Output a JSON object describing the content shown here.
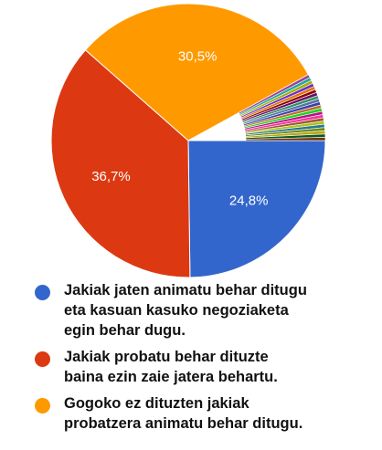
{
  "chart_data": {
    "type": "pie",
    "slices": [
      {
        "label": "Jakiak jaten animatu behar ditugu\neta kasuan kasuko negoziaketa\negin behar dugu.",
        "value": 24.8,
        "value_label": "24,8%",
        "color": "#3366cc"
      },
      {
        "label": "Jakiak probatu behar dituzte\nbaina ezin zaie jatera behartu.",
        "value": 36.7,
        "value_label": "36,7%",
        "color": "#dc3912"
      },
      {
        "label": "Gogoko ez dituzten jakiak\nprobatzera animatu behar ditugu.",
        "value": 30.5,
        "value_label": "30,5%",
        "color": "#ff9900"
      },
      {
        "label": "",
        "value": 8.0,
        "value_label": "",
        "color": "multicolor-thin-slices"
      }
    ],
    "start": "3 o'clock",
    "direction": "clockwise",
    "legend_position": "bottom"
  },
  "legend": [
    {
      "text": "Jakiak jaten animatu behar ditugu\neta kasuan kasuko negoziaketa\negin behar dugu.",
      "color": "#3366cc"
    },
    {
      "text": "Jakiak probatu behar dituzte\nbaina ezin zaie jatera behartu.",
      "color": "#dc3912"
    },
    {
      "text": "Gogoko ez dituzten jakiak\nprobatzera animatu behar ditugu.",
      "color": "#ff9900"
    }
  ]
}
